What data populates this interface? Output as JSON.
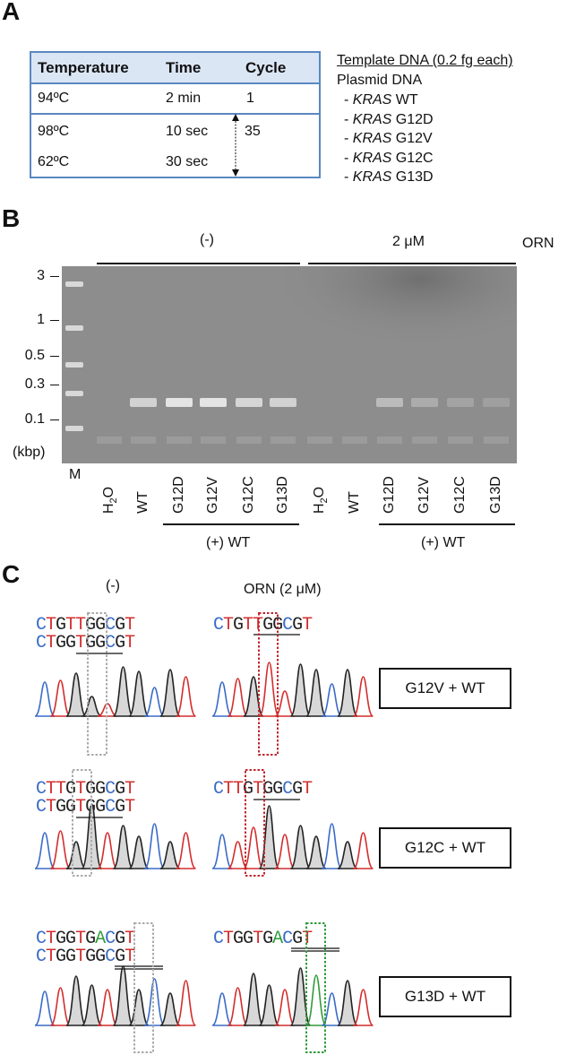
{
  "panels": {
    "A": "A",
    "B": "B",
    "C": "C"
  },
  "panelA": {
    "headers": [
      "Temperature",
      "Time",
      "Cycle"
    ],
    "rows": [
      {
        "temperature": "94ºC",
        "time": "2 min",
        "cycle": "1"
      },
      {
        "temperature": "98ºC",
        "time": "10 sec",
        "cycle": "35"
      },
      {
        "temperature": "62ºC",
        "time": "30 sec",
        "cycle": ""
      }
    ],
    "template_title": "Template DNA (0.2 fg each)",
    "template_subtitle": "Plasmid DNA",
    "templates": [
      {
        "gene": "KRAS",
        "variant": "WT"
      },
      {
        "gene": "KRAS",
        "variant": "G12D"
      },
      {
        "gene": "KRAS",
        "variant": "G12V"
      },
      {
        "gene": "KRAS",
        "variant": "G12C"
      },
      {
        "gene": "KRAS",
        "variant": "G13D"
      }
    ]
  },
  "panelB": {
    "group_minus": "(-)",
    "group_orn": "2 μM",
    "orn_label": "ORN",
    "ladder_labels": [
      "3",
      "1",
      "0.5",
      "0.3",
      "0.1"
    ],
    "unit_label": "(kbp)",
    "lanes": [
      "M",
      "H2O",
      "WT",
      "G12D",
      "G12V",
      "G12C",
      "G13D",
      "H2O",
      "WT",
      "G12D",
      "G12V",
      "G12C",
      "G13D"
    ],
    "plus_wt_label": "(+) WT",
    "colors": {
      "gel_bg": "#8c8c8c",
      "band": "#e9e9e9"
    }
  },
  "panelC": {
    "col_minus": "(-)",
    "col_orn": "ORN (2 μM)",
    "rows": [
      {
        "label": "G12V + WT",
        "minus_top": "CTGTTGGCGT",
        "minus_bottom": "CTGGTGGCGT",
        "orn": "CTGTTGGCGT"
      },
      {
        "label": "G12C + WT",
        "minus_top": "CTTGTGGCGT",
        "minus_bottom": "CTGGTGGCGT",
        "orn": "CTTGTGGCGT"
      },
      {
        "label": "G13D + WT",
        "minus_top": "CTGGTGACGT",
        "minus_bottom": "CTGGTGGCGT",
        "orn": "CTGGTGACGT"
      }
    ],
    "base_colors": {
      "A": "#2e9b3a",
      "C": "#3a6bc7",
      "G": "#222222",
      "T": "#d42d2d"
    }
  }
}
